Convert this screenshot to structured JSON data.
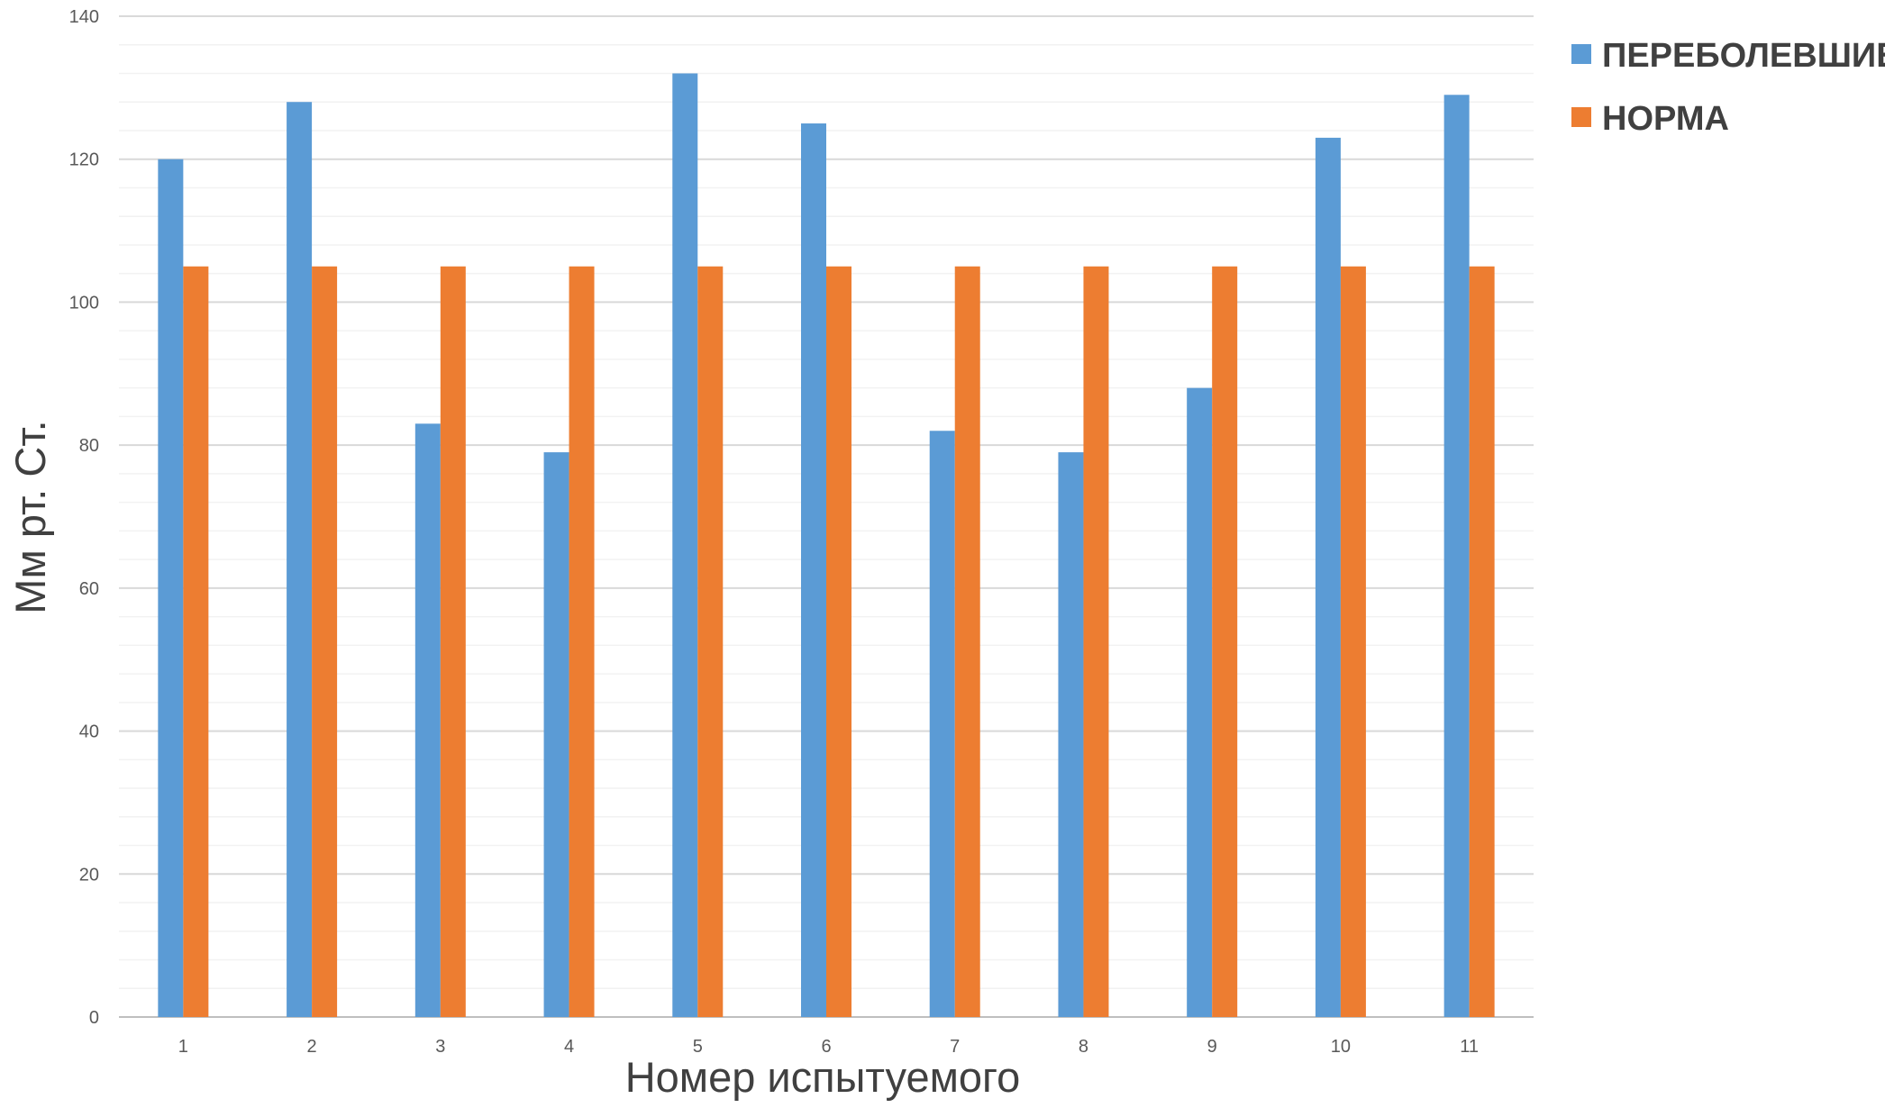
{
  "chart_data": {
    "type": "bar",
    "title": "",
    "xlabel": "Номер испытуемого",
    "ylabel": "Мм рт. Ст.",
    "categories": [
      "1",
      "2",
      "3",
      "4",
      "5",
      "6",
      "7",
      "8",
      "9",
      "10",
      "11"
    ],
    "series": [
      {
        "name": "ПЕРЕБОЛЕВШИЕ",
        "color": "#5B9BD5",
        "values": [
          120,
          128,
          83,
          79,
          132,
          125,
          82,
          79,
          88,
          123,
          129
        ]
      },
      {
        "name": "НОРМА",
        "color": "#ED7D31",
        "values": [
          105,
          105,
          105,
          105,
          105,
          105,
          105,
          105,
          105,
          105,
          105
        ]
      }
    ],
    "ylim": [
      0,
      140
    ],
    "yticks": [
      0,
      20,
      40,
      60,
      80,
      100,
      120,
      140
    ],
    "grid": true,
    "legend_position": "top-right"
  }
}
